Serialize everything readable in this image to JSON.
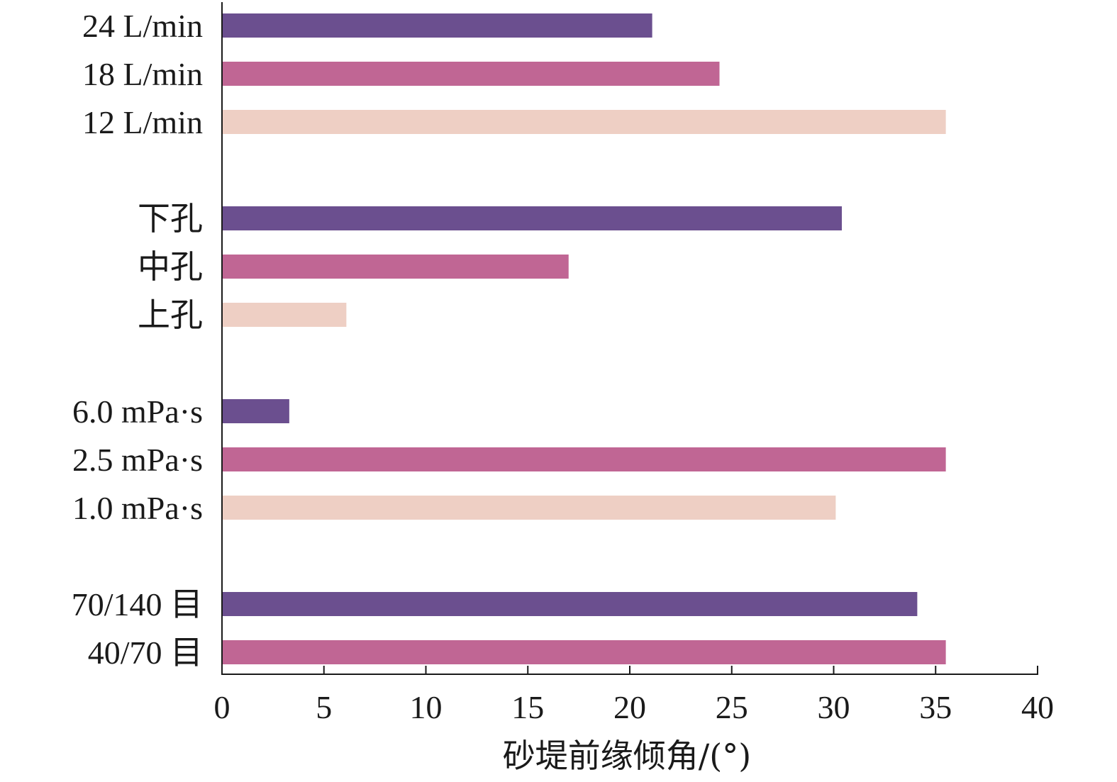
{
  "chart_data": {
    "type": "bar",
    "orientation": "horizontal",
    "xlabel": "砂堤前缘倾角/(°)",
    "xlim": [
      0,
      40
    ],
    "xticks": [
      0,
      5,
      10,
      15,
      20,
      25,
      30,
      35,
      40
    ],
    "grid": false,
    "bars": [
      {
        "category": "24 L/min",
        "value": 21.1,
        "color": "#6b4f8f"
      },
      {
        "category": "18 L/min",
        "value": 24.4,
        "color": "#c06694"
      },
      {
        "category": "12 L/min",
        "value": 35.5,
        "color": "#eecfc4"
      },
      {
        "category": "下孔",
        "value": 30.4,
        "color": "#6b4f8f"
      },
      {
        "category": "中孔",
        "value": 17.0,
        "color": "#c06694"
      },
      {
        "category": "上孔",
        "value": 6.1,
        "color": "#eecfc4"
      },
      {
        "category": "6.0 mPa·s",
        "value": 3.3,
        "color": "#6b4f8f"
      },
      {
        "category": "2.5 mPa·s",
        "value": 35.5,
        "color": "#c06694"
      },
      {
        "category": "1.0 mPa·s",
        "value": 30.1,
        "color": "#eecfc4"
      },
      {
        "category": "70/140 目",
        "value": 34.1,
        "color": "#6b4f8f"
      },
      {
        "category": "40/70 目",
        "value": 35.5,
        "color": "#c06694"
      }
    ]
  }
}
